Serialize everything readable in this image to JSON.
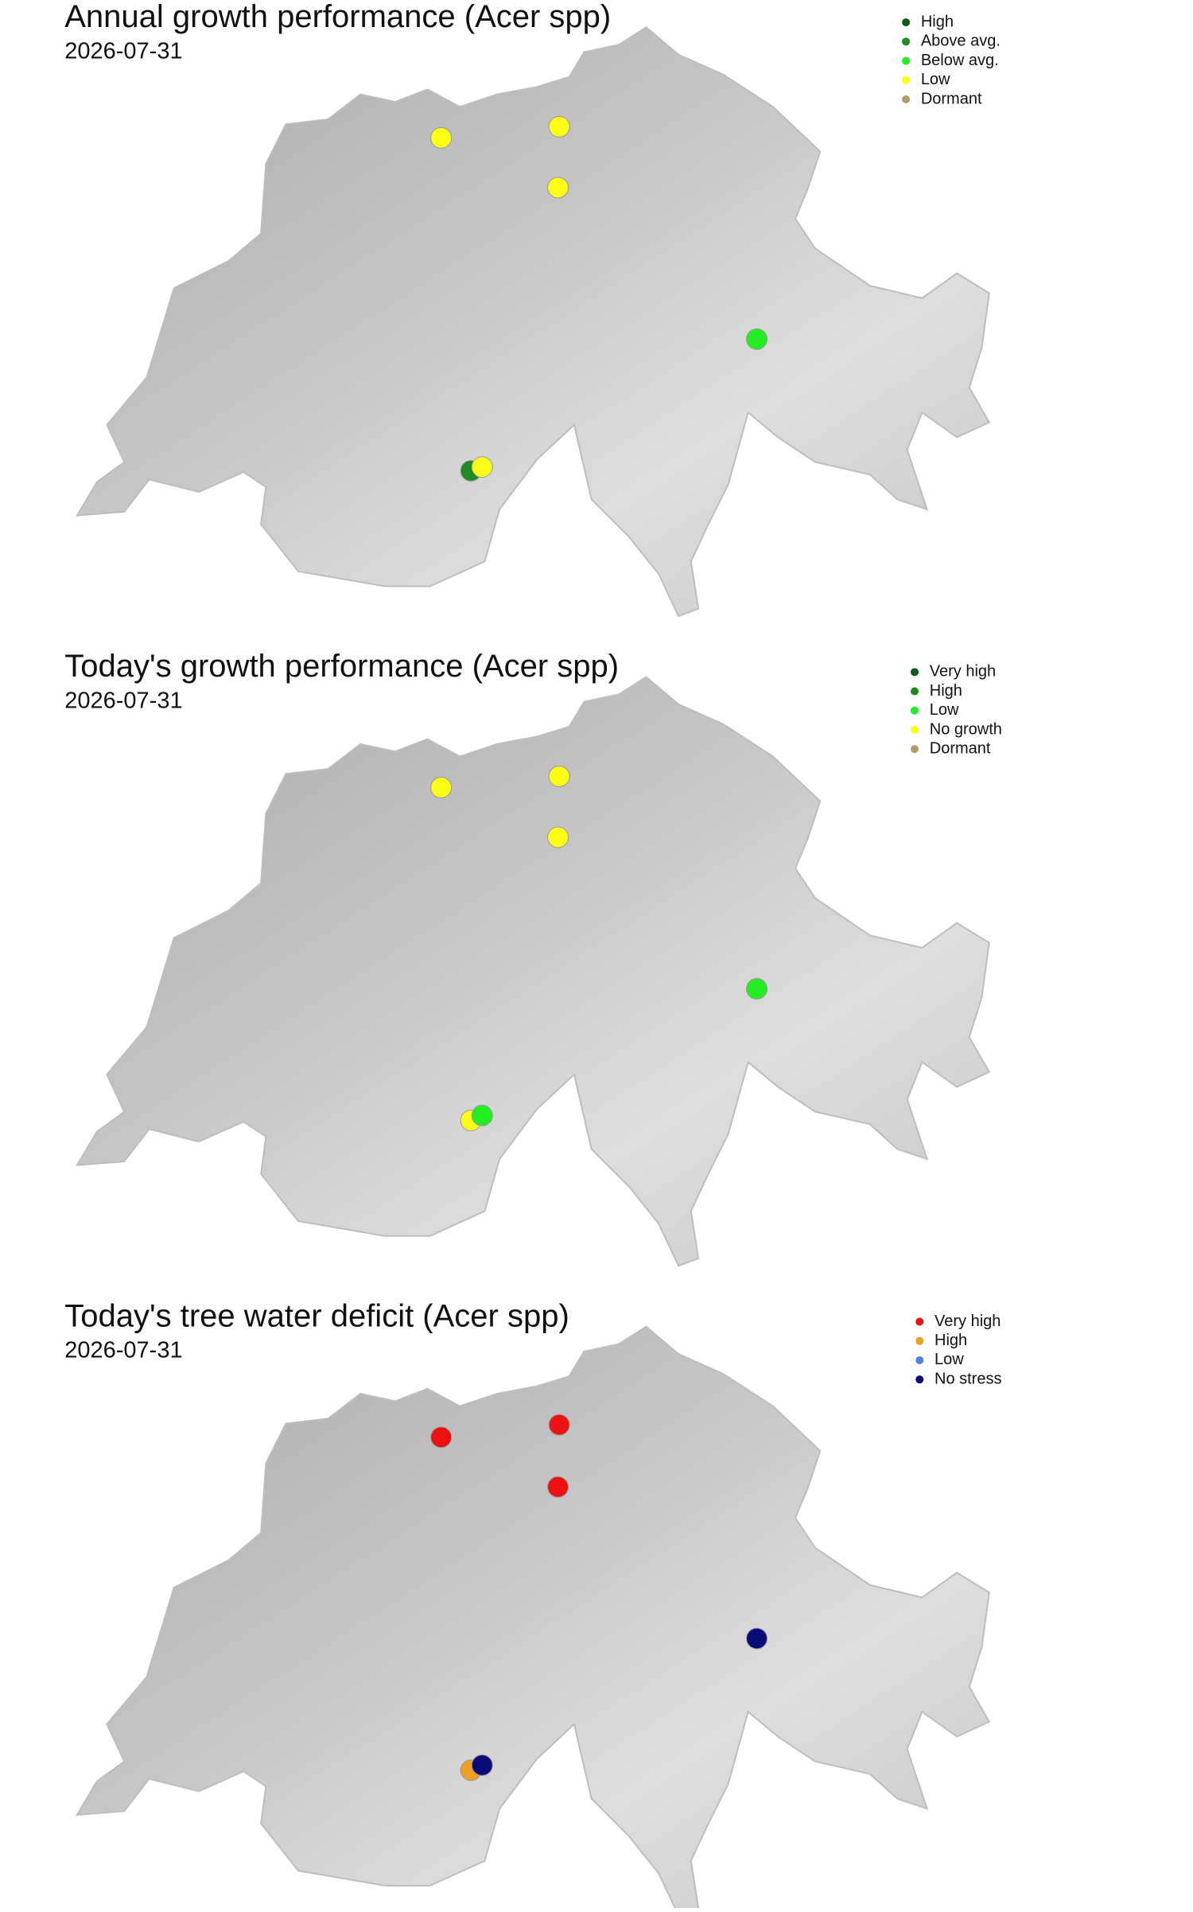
{
  "panels": [
    {
      "title": "Annual growth performance (Acer spp)",
      "date": "2026-07-31",
      "legend": [
        {
          "label": "High",
          "color": "#0b5a16"
        },
        {
          "label": "Above avg.",
          "color": "#1f8a1f"
        },
        {
          "label": "Below avg.",
          "color": "#22ee22"
        },
        {
          "label": "Low",
          "color": "#ffff14"
        },
        {
          "label": "Dormant",
          "color": "#b49a6a"
        }
      ]
    },
    {
      "title": "Today's growth performance (Acer spp)",
      "date": "2026-07-31",
      "legend": [
        {
          "label": "Very high",
          "color": "#0b5a16"
        },
        {
          "label": "High",
          "color": "#1f8a1f"
        },
        {
          "label": "Low",
          "color": "#22ee22"
        },
        {
          "label": "No growth",
          "color": "#ffff14"
        },
        {
          "label": "Dormant",
          "color": "#b49a6a"
        }
      ]
    },
    {
      "title": "Today's tree water deficit (Acer spp)",
      "date": "2026-07-31",
      "legend": [
        {
          "label": "Very high",
          "color": "#ee1111"
        },
        {
          "label": "High",
          "color": "#f0a020"
        },
        {
          "label": "Low",
          "color": "#4f7fe0"
        },
        {
          "label": "No stress",
          "color": "#0a0a78"
        }
      ]
    }
  ]
}
